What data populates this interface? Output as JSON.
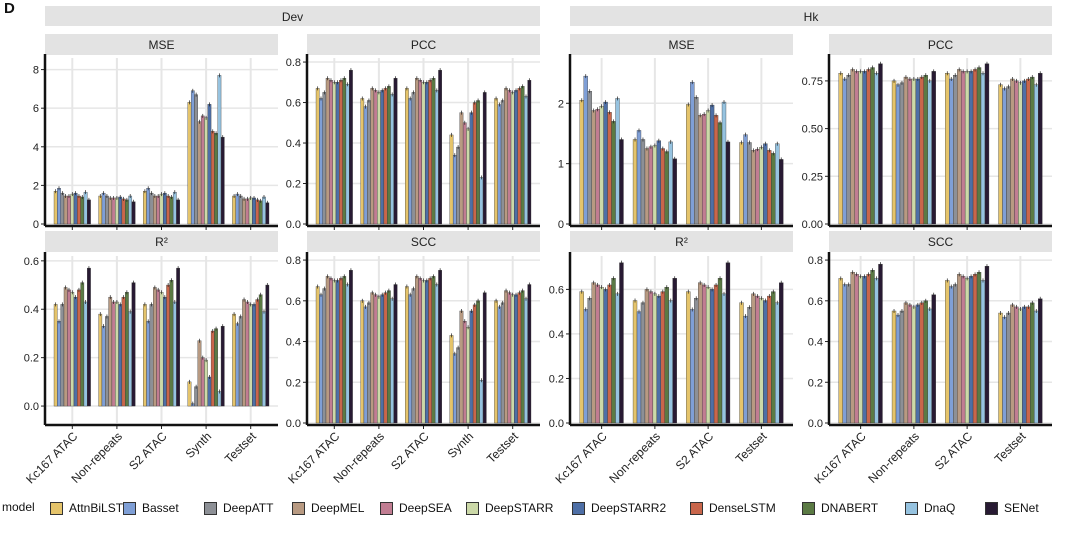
{
  "figure_label": "D",
  "legend": {
    "title": "model",
    "items": [
      {
        "name": "AttnBiLSTM",
        "color": "#e5c46b"
      },
      {
        "name": "Basset",
        "color": "#7f9fd6"
      },
      {
        "name": "DeepATT",
        "color": "#8d9096"
      },
      {
        "name": "DeepMEL",
        "color": "#b89a82"
      },
      {
        "name": "DeepSEA",
        "color": "#c17d92"
      },
      {
        "name": "DeepSTARR",
        "color": "#ccd9a8"
      },
      {
        "name": "DeepSTARR2",
        "color": "#4e6fa6"
      },
      {
        "name": "DenseLSTM",
        "color": "#c9664b"
      },
      {
        "name": "DNABERT",
        "color": "#5b7a44"
      },
      {
        "name": "DnaQ",
        "color": "#96c3e0"
      },
      {
        "name": "SENet",
        "color": "#281a33"
      }
    ]
  },
  "chart_data": [
    {
      "type": "bar",
      "group": "Dev",
      "title": "MSE",
      "ylim": [
        0,
        8.6
      ],
      "ticks": [
        "0",
        "2",
        "4",
        "6",
        "8"
      ],
      "categories": [
        "Kc167 ATAC",
        "Non-repeats",
        "S2 ATAC",
        "Synth",
        "Testset"
      ],
      "values": [
        [
          1.7,
          1.85,
          1.6,
          1.45,
          1.45,
          1.55,
          1.6,
          1.45,
          1.4,
          1.65,
          1.25
        ],
        [
          1.45,
          1.6,
          1.45,
          1.35,
          1.35,
          1.35,
          1.4,
          1.3,
          1.25,
          1.45,
          1.15
        ],
        [
          1.7,
          1.85,
          1.6,
          1.45,
          1.45,
          1.55,
          1.6,
          1.45,
          1.4,
          1.65,
          1.25
        ],
        [
          6.3,
          6.9,
          6.7,
          5.3,
          5.6,
          5.5,
          6.2,
          4.8,
          4.7,
          7.7,
          4.5
        ],
        [
          1.45,
          1.55,
          1.45,
          1.3,
          1.3,
          1.35,
          1.35,
          1.25,
          1.2,
          1.4,
          1.1
        ]
      ]
    },
    {
      "type": "bar",
      "group": "Dev",
      "title": "PCC",
      "ylim": [
        0,
        0.82
      ],
      "ticks": [
        "0.0",
        "0.2",
        "0.4",
        "0.6",
        "0.8"
      ],
      "categories": [
        "Kc167 ATAC",
        "Non-repeats",
        "S2 ATAC",
        "Synth",
        "Testset"
      ],
      "values": [
        [
          0.67,
          0.62,
          0.65,
          0.72,
          0.71,
          0.7,
          0.7,
          0.71,
          0.72,
          0.69,
          0.76
        ],
        [
          0.62,
          0.58,
          0.61,
          0.67,
          0.66,
          0.65,
          0.66,
          0.67,
          0.68,
          0.64,
          0.72
        ],
        [
          0.67,
          0.62,
          0.65,
          0.72,
          0.71,
          0.7,
          0.7,
          0.71,
          0.72,
          0.66,
          0.76
        ],
        [
          0.44,
          0.34,
          0.38,
          0.55,
          0.5,
          0.47,
          0.55,
          0.6,
          0.61,
          0.23,
          0.65
        ],
        [
          0.62,
          0.59,
          0.61,
          0.67,
          0.66,
          0.65,
          0.66,
          0.67,
          0.68,
          0.63,
          0.71
        ]
      ]
    },
    {
      "type": "bar",
      "group": "Dev",
      "title": "R²",
      "ylim": [
        -0.07,
        0.62
      ],
      "ticks": [
        "0.0",
        "0.2",
        "0.4",
        "0.6"
      ],
      "categories": [
        "Kc167 ATAC",
        "Non-repeats",
        "S2 ATAC",
        "Synth",
        "Testset"
      ],
      "values": [
        [
          0.42,
          0.35,
          0.42,
          0.49,
          0.48,
          0.47,
          0.45,
          0.48,
          0.51,
          0.43,
          0.57
        ],
        [
          0.38,
          0.33,
          0.37,
          0.45,
          0.43,
          0.43,
          0.42,
          0.45,
          0.47,
          0.39,
          0.51
        ],
        [
          0.42,
          0.35,
          0.42,
          0.49,
          0.48,
          0.47,
          0.45,
          0.5,
          0.52,
          0.43,
          0.57
        ],
        [
          0.1,
          0.01,
          0.08,
          0.27,
          0.2,
          0.19,
          0.12,
          0.31,
          0.32,
          0.06,
          0.33
        ],
        [
          0.38,
          0.34,
          0.37,
          0.44,
          0.43,
          0.42,
          0.42,
          0.44,
          0.46,
          0.39,
          0.5
        ]
      ]
    },
    {
      "type": "bar",
      "group": "Dev",
      "title": "SCC",
      "ylim": [
        0,
        0.82
      ],
      "ticks": [
        "0.0",
        "0.2",
        "0.4",
        "0.6",
        "0.8"
      ],
      "categories": [
        "Kc167 ATAC",
        "Non-repeats",
        "S2 ATAC",
        "Synth",
        "Testset"
      ],
      "values": [
        [
          0.67,
          0.63,
          0.66,
          0.72,
          0.71,
          0.7,
          0.7,
          0.71,
          0.72,
          0.68,
          0.75
        ],
        [
          0.6,
          0.57,
          0.59,
          0.64,
          0.63,
          0.62,
          0.63,
          0.64,
          0.65,
          0.61,
          0.68
        ],
        [
          0.67,
          0.63,
          0.66,
          0.72,
          0.71,
          0.7,
          0.7,
          0.71,
          0.72,
          0.68,
          0.75
        ],
        [
          0.43,
          0.34,
          0.37,
          0.55,
          0.5,
          0.47,
          0.55,
          0.58,
          0.6,
          0.21,
          0.64
        ],
        [
          0.6,
          0.57,
          0.59,
          0.65,
          0.64,
          0.63,
          0.63,
          0.64,
          0.65,
          0.61,
          0.68
        ]
      ]
    },
    {
      "type": "bar",
      "group": "Hk",
      "title": "MSE",
      "ylim": [
        0,
        2.75
      ],
      "ticks": [
        "0",
        "1",
        "2"
      ],
      "categories": [
        "Kc167 ATAC",
        "Non-repeats",
        "S2 ATAC",
        "Testset"
      ],
      "values": [
        [
          2.05,
          2.45,
          2.2,
          1.88,
          1.9,
          1.95,
          2.02,
          1.85,
          1.7,
          2.08,
          1.4
        ],
        [
          1.4,
          1.55,
          1.4,
          1.25,
          1.28,
          1.3,
          1.38,
          1.25,
          1.2,
          1.36,
          1.08
        ],
        [
          1.98,
          2.35,
          2.1,
          1.8,
          1.82,
          1.88,
          1.97,
          1.8,
          1.68,
          2.02,
          1.36
        ],
        [
          1.35,
          1.48,
          1.35,
          1.22,
          1.24,
          1.27,
          1.33,
          1.22,
          1.17,
          1.33,
          1.07
        ]
      ]
    },
    {
      "type": "bar",
      "group": "Hk",
      "title": "PCC",
      "ylim": [
        0,
        0.87
      ],
      "ticks": [
        "0.00",
        "0.25",
        "0.50",
        "0.75"
      ],
      "categories": [
        "Kc167 ATAC",
        "Non-repeats",
        "S2 ATAC",
        "Testset"
      ],
      "values": [
        [
          0.79,
          0.76,
          0.78,
          0.81,
          0.8,
          0.8,
          0.8,
          0.81,
          0.82,
          0.79,
          0.84
        ],
        [
          0.75,
          0.73,
          0.74,
          0.77,
          0.76,
          0.76,
          0.76,
          0.77,
          0.78,
          0.75,
          0.8
        ],
        [
          0.79,
          0.76,
          0.78,
          0.81,
          0.8,
          0.8,
          0.8,
          0.81,
          0.82,
          0.79,
          0.84
        ],
        [
          0.73,
          0.71,
          0.72,
          0.76,
          0.75,
          0.74,
          0.75,
          0.76,
          0.77,
          0.73,
          0.79
        ]
      ]
    },
    {
      "type": "bar",
      "group": "Hk",
      "title": "R²",
      "ylim": [
        0,
        0.75
      ],
      "ticks": [
        "0.0",
        "0.2",
        "0.4",
        "0.6"
      ],
      "categories": [
        "Kc167 ATAC",
        "Non-repeats",
        "S2 ATAC",
        "Testset"
      ],
      "values": [
        [
          0.59,
          0.51,
          0.56,
          0.63,
          0.62,
          0.61,
          0.6,
          0.62,
          0.65,
          0.58,
          0.72
        ],
        [
          0.55,
          0.5,
          0.54,
          0.6,
          0.59,
          0.58,
          0.57,
          0.59,
          0.61,
          0.55,
          0.65
        ],
        [
          0.59,
          0.51,
          0.56,
          0.63,
          0.62,
          0.61,
          0.6,
          0.62,
          0.65,
          0.58,
          0.72
        ],
        [
          0.54,
          0.48,
          0.52,
          0.58,
          0.57,
          0.56,
          0.55,
          0.57,
          0.59,
          0.54,
          0.63
        ]
      ]
    },
    {
      "type": "bar",
      "group": "Hk",
      "title": "SCC",
      "ylim": [
        0,
        0.82
      ],
      "ticks": [
        "0.0",
        "0.2",
        "0.4",
        "0.6",
        "0.8"
      ],
      "categories": [
        "Kc167 ATAC",
        "Non-repeats",
        "S2 ATAC",
        "Testset"
      ],
      "values": [
        [
          0.71,
          0.68,
          0.68,
          0.74,
          0.73,
          0.72,
          0.72,
          0.73,
          0.75,
          0.71,
          0.78
        ],
        [
          0.55,
          0.53,
          0.55,
          0.59,
          0.58,
          0.57,
          0.58,
          0.59,
          0.6,
          0.56,
          0.63
        ],
        [
          0.7,
          0.67,
          0.68,
          0.73,
          0.72,
          0.71,
          0.72,
          0.73,
          0.74,
          0.7,
          0.77
        ],
        [
          0.54,
          0.52,
          0.54,
          0.58,
          0.57,
          0.56,
          0.57,
          0.57,
          0.59,
          0.55,
          0.61
        ]
      ]
    }
  ],
  "groups": [
    {
      "name": "Dev"
    },
    {
      "name": "Hk"
    }
  ]
}
